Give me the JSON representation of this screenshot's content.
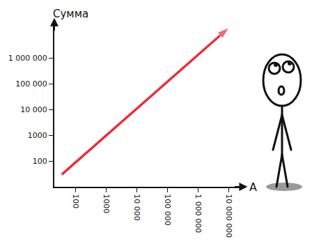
{
  "chart_data": {
    "type": "line",
    "x_label": "A",
    "y_label": "Сумма",
    "log": true,
    "grid": false,
    "x": [
      35,
      10000000
    ],
    "series": [
      {
        "values": [
          30,
          15000000
        ],
        "color": "#e8303c",
        "marker": "arrow",
        "line_style": "solid"
      }
    ],
    "xlim": [
      20,
      30000000
    ],
    "ylim": [
      10,
      20000000
    ],
    "xticks": [
      100,
      1000,
      {
        "value": 10000,
        "label": "10 000"
      },
      {
        "value": 100000,
        "label": "100 000"
      },
      {
        "value": 1000000,
        "label": "1 000 000"
      },
      {
        "value": 10000000,
        "label": "10 000 000"
      }
    ],
    "yticks": [
      100,
      1000,
      {
        "value": 10000,
        "label": "10 000"
      },
      {
        "value": 100000,
        "label": "100 000"
      },
      {
        "value": 1000000,
        "label": "1 000 000"
      }
    ]
  }
}
